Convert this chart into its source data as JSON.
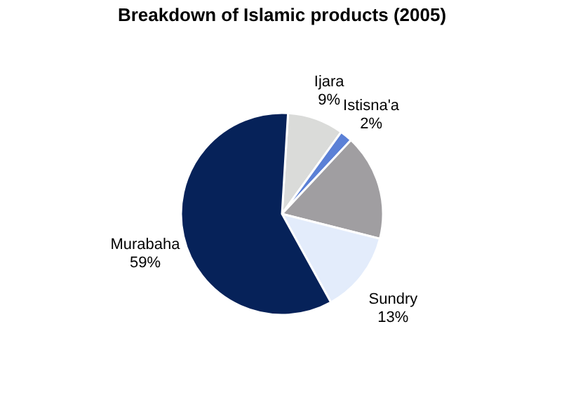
{
  "chart_data": {
    "type": "pie",
    "title": "Breakdown of Islamic products (2005)",
    "categories": [
      "Ijara",
      "Istisna'a",
      null,
      "Sundry",
      "Murabaha"
    ],
    "values": [
      9,
      2,
      17,
      13,
      59
    ],
    "value_labels": [
      "9%",
      "2%",
      null,
      "13%",
      "59%"
    ],
    "colors": [
      "#dadbd9",
      "#5b80d6",
      "#a09ea1",
      "#e3ecfb",
      "#062259"
    ],
    "legend": false
  }
}
